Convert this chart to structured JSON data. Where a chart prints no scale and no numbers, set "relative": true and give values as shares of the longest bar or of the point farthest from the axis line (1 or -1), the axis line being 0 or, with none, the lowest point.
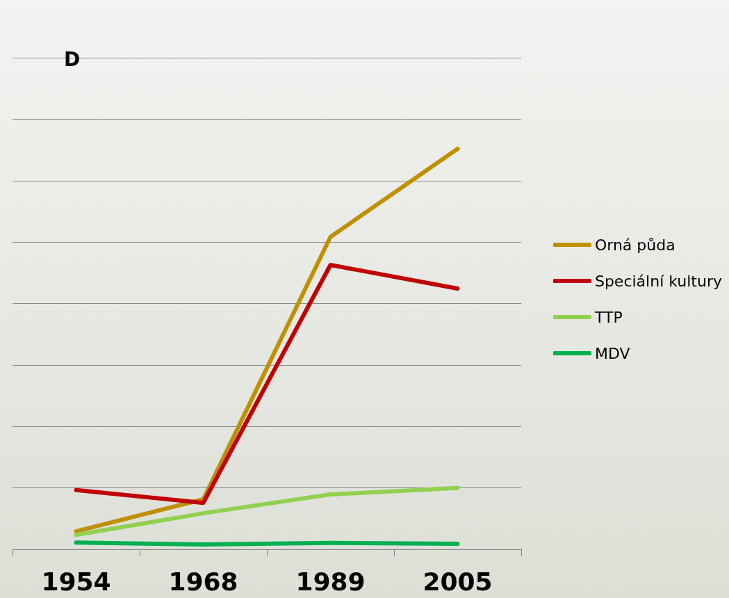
{
  "chart_data": {
    "type": "line",
    "title": "D",
    "categories": [
      "1954",
      "1968",
      "1989",
      "2005"
    ],
    "relative": true,
    "grid": "y",
    "legend": "right",
    "marker": "none",
    "line_style": "solid",
    "series": [
      {
        "name": "Orná půda",
        "color": "#bf9000",
        "values": [
          0.045,
          0.125,
          0.78,
          1
        ]
      },
      {
        "name": "Speciální kultury",
        "color": "#c00000",
        "values": [
          0.148,
          0.116,
          0.71,
          0.651
        ]
      },
      {
        "name": "TTP",
        "color": "#92d050",
        "values": [
          0.036,
          0.09,
          0.137,
          0.153
        ]
      },
      {
        "name": "MDV",
        "color": "#00b050",
        "values": [
          0.017,
          0.012,
          0.016,
          0.014
        ]
      }
    ]
  }
}
